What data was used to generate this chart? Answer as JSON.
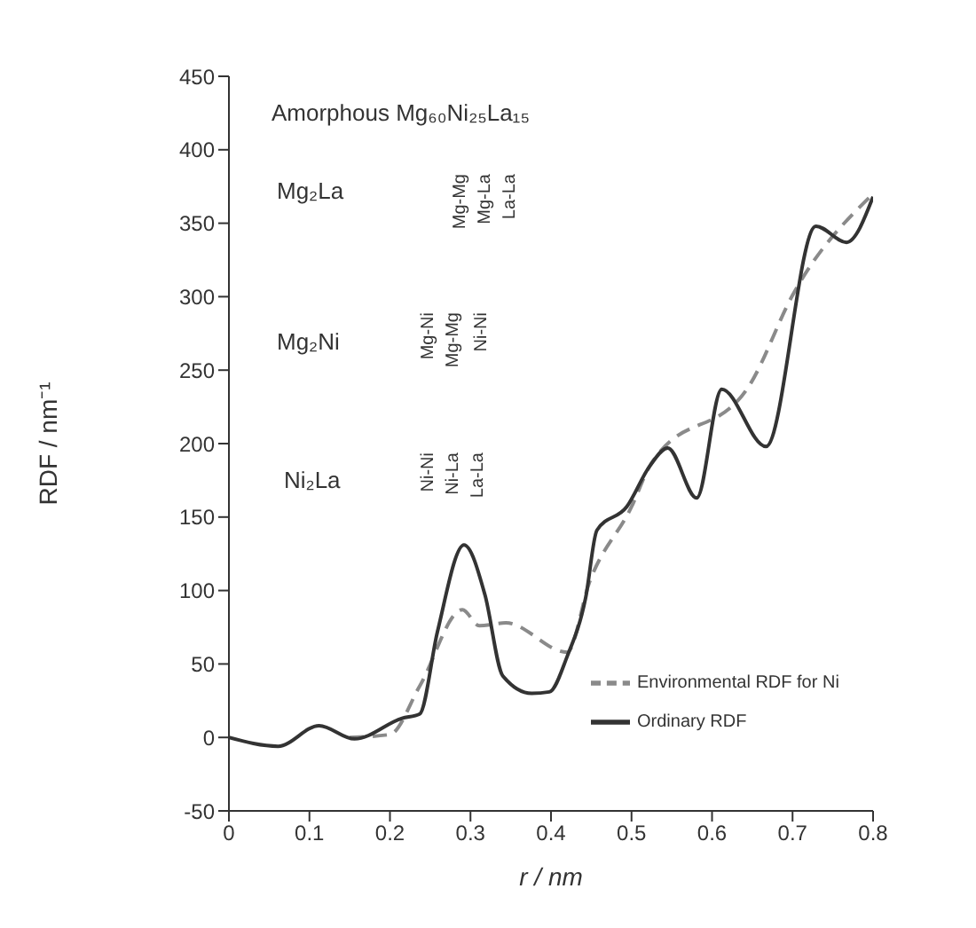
{
  "chart_data": {
    "type": "line",
    "xlabel": "r / nm",
    "ylabel": "RDF / nm⁻¹",
    "xlim": [
      0,
      0.8
    ],
    "xticks": [
      0,
      0.1,
      0.2,
      0.3,
      0.4,
      0.5,
      0.6,
      0.7,
      0.8
    ],
    "ylim": [
      -50,
      450
    ],
    "yticks": [
      -50,
      0,
      50,
      100,
      150,
      200,
      250,
      300,
      350,
      400,
      450
    ],
    "legend": "bottom right",
    "series": [
      {
        "name": "Environmental RDF for Ni",
        "color": "#8a8a8a",
        "line_style": "dashed",
        "x": [
          0.15,
          0.2,
          0.237,
          0.29,
          0.311,
          0.344,
          0.42,
          0.448,
          0.5,
          0.523,
          0.648,
          0.7,
          0.8
        ],
        "values": [
          0,
          2,
          35,
          87,
          76,
          78,
          58,
          106,
          157,
          185,
          241,
          301,
          370
        ]
      },
      {
        "name": "Ordinary RDF",
        "color": "#333333",
        "line_style": "solid",
        "x": [
          0,
          0.061,
          0.112,
          0.156,
          0.215,
          0.237,
          0.259,
          0.292,
          0.318,
          0.34,
          0.376,
          0.398,
          0.42,
          0.443,
          0.457,
          0.494,
          0.523,
          0.545,
          0.581,
          0.612,
          0.667,
          0.729,
          0.767,
          0.8
        ],
        "values": [
          0,
          -6,
          8,
          -1,
          13,
          16,
          72,
          131,
          97,
          42,
          30,
          31,
          55,
          95,
          141,
          157,
          185,
          197,
          163,
          237,
          198,
          348,
          337,
          368
        ]
      }
    ],
    "annotations": [
      "Amorphous Mg₆₀Ni₂₅La₁₅",
      "Mg₂La",
      "Mg-Mg",
      "Mg-La",
      "La-La",
      "Mg₂Ni",
      "Mg-Ni",
      "Mg-Mg",
      "Ni-Ni",
      "Ni₂La",
      "Ni-Ni",
      "Ni-La",
      "La-La"
    ]
  }
}
